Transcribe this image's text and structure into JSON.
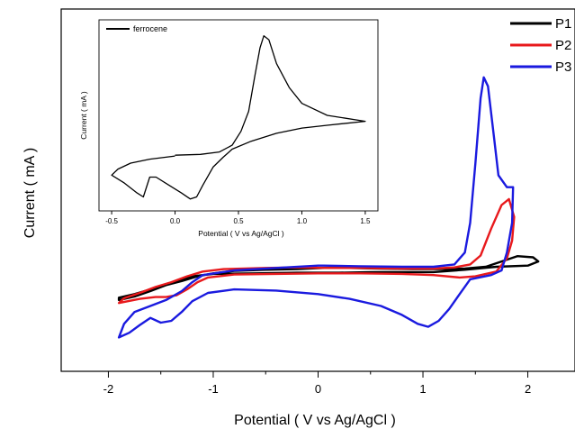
{
  "chart_data": [
    {
      "type": "line",
      "title": "",
      "xlabel": "Potential ( V vs Ag/AgCl )",
      "ylabel": "Current ( mA )",
      "xlim": [
        -2.45,
        2.45
      ],
      "ylim": [
        -1.5,
        4.6
      ],
      "xticks": [
        -2,
        -1,
        0,
        1,
        2
      ],
      "xtick_labels": [
        "-2",
        "-1",
        "0",
        "1",
        "2"
      ],
      "y_tick_labels_shown": false,
      "legend_position": "top-right",
      "series": [
        {
          "name": "P1",
          "color": "#000000",
          "points": [
            [
              0.05,
              0.24
            ],
            [
              0.3,
              0.24
            ],
            [
              0.6,
              0.23
            ],
            [
              0.9,
              0.22
            ],
            [
              1.2,
              0.22
            ],
            [
              1.4,
              0.23
            ],
            [
              1.6,
              0.26
            ],
            [
              1.75,
              0.35
            ],
            [
              1.9,
              0.44
            ],
            [
              2.05,
              0.42
            ],
            [
              2.1,
              0.35
            ],
            [
              2.0,
              0.28
            ],
            [
              1.7,
              0.26
            ],
            [
              1.4,
              0.21
            ],
            [
              1.1,
              0.17
            ],
            [
              0.8,
              0.17
            ],
            [
              0.5,
              0.17
            ],
            [
              0.2,
              0.16
            ],
            [
              -0.2,
              0.16
            ],
            [
              -0.6,
              0.15
            ],
            [
              -1.0,
              0.14
            ],
            [
              -1.2,
              0.1
            ],
            [
              -1.35,
              0.03
            ],
            [
              -1.45,
              -0.05
            ],
            [
              -1.6,
              -0.15
            ],
            [
              -1.75,
              -0.24
            ],
            [
              -1.9,
              -0.3
            ],
            [
              -1.9,
              -0.26
            ],
            [
              -1.75,
              -0.2
            ],
            [
              -1.6,
              -0.12
            ],
            [
              -1.45,
              -0.05
            ],
            [
              -1.3,
              0.02
            ],
            [
              -1.15,
              0.1
            ],
            [
              -1.0,
              0.15
            ],
            [
              -0.8,
              0.19
            ],
            [
              -0.5,
              0.21
            ],
            [
              -0.2,
              0.22
            ],
            [
              0.05,
              0.24
            ]
          ]
        },
        {
          "name": "P2",
          "color": "#e8191c",
          "points": [
            [
              0.05,
              0.24
            ],
            [
              0.4,
              0.24
            ],
            [
              0.8,
              0.23
            ],
            [
              1.1,
              0.23
            ],
            [
              1.3,
              0.25
            ],
            [
              1.45,
              0.3
            ],
            [
              1.55,
              0.45
            ],
            [
              1.65,
              0.9
            ],
            [
              1.75,
              1.3
            ],
            [
              1.82,
              1.4
            ],
            [
              1.87,
              1.1
            ],
            [
              1.85,
              0.7
            ],
            [
              1.8,
              0.4
            ],
            [
              1.7,
              0.18
            ],
            [
              1.5,
              0.1
            ],
            [
              1.35,
              0.08
            ],
            [
              1.1,
              0.12
            ],
            [
              0.8,
              0.14
            ],
            [
              0.4,
              0.15
            ],
            [
              0.0,
              0.15
            ],
            [
              -0.4,
              0.14
            ],
            [
              -0.8,
              0.13
            ],
            [
              -1.05,
              0.08
            ],
            [
              -1.15,
              0.0
            ],
            [
              -1.25,
              -0.12
            ],
            [
              -1.35,
              -0.22
            ],
            [
              -1.45,
              -0.25
            ],
            [
              -1.55,
              -0.25
            ],
            [
              -1.7,
              -0.28
            ],
            [
              -1.9,
              -0.35
            ],
            [
              -1.85,
              -0.27
            ],
            [
              -1.7,
              -0.18
            ],
            [
              -1.55,
              -0.08
            ],
            [
              -1.4,
              0.0
            ],
            [
              -1.25,
              0.1
            ],
            [
              -1.1,
              0.18
            ],
            [
              -0.9,
              0.22
            ],
            [
              -0.5,
              0.24
            ],
            [
              -0.2,
              0.25
            ],
            [
              0.05,
              0.24
            ]
          ]
        },
        {
          "name": "P3",
          "color": "#1a1adf",
          "points": [
            [
              0.05,
              0.28
            ],
            [
              0.4,
              0.27
            ],
            [
              0.8,
              0.26
            ],
            [
              1.1,
              0.26
            ],
            [
              1.3,
              0.3
            ],
            [
              1.4,
              0.5
            ],
            [
              1.45,
              1.0
            ],
            [
              1.5,
              2.0
            ],
            [
              1.55,
              3.1
            ],
            [
              1.58,
              3.45
            ],
            [
              1.62,
              3.3
            ],
            [
              1.68,
              2.4
            ],
            [
              1.72,
              1.8
            ],
            [
              1.8,
              1.6
            ],
            [
              1.86,
              1.6
            ],
            [
              1.85,
              1.0
            ],
            [
              1.8,
              0.5
            ],
            [
              1.75,
              0.2
            ],
            [
              1.65,
              0.12
            ],
            [
              1.45,
              0.05
            ],
            [
              1.35,
              -0.2
            ],
            [
              1.25,
              -0.45
            ],
            [
              1.15,
              -0.65
            ],
            [
              1.05,
              -0.75
            ],
            [
              0.95,
              -0.7
            ],
            [
              0.8,
              -0.55
            ],
            [
              0.6,
              -0.4
            ],
            [
              0.3,
              -0.28
            ],
            [
              0.0,
              -0.2
            ],
            [
              -0.4,
              -0.14
            ],
            [
              -0.8,
              -0.12
            ],
            [
              -1.05,
              -0.18
            ],
            [
              -1.2,
              -0.32
            ],
            [
              -1.3,
              -0.5
            ],
            [
              -1.4,
              -0.65
            ],
            [
              -1.5,
              -0.68
            ],
            [
              -1.6,
              -0.6
            ],
            [
              -1.7,
              -0.72
            ],
            [
              -1.8,
              -0.85
            ],
            [
              -1.9,
              -0.93
            ],
            [
              -1.85,
              -0.7
            ],
            [
              -1.75,
              -0.5
            ],
            [
              -1.6,
              -0.4
            ],
            [
              -1.45,
              -0.3
            ],
            [
              -1.3,
              -0.15
            ],
            [
              -1.2,
              0.0
            ],
            [
              -1.1,
              0.12
            ],
            [
              -0.8,
              0.2
            ],
            [
              -0.4,
              0.24
            ],
            [
              0.0,
              0.28
            ],
            [
              0.05,
              0.28
            ]
          ]
        }
      ]
    },
    {
      "type": "line",
      "title": "",
      "xlabel": "Potential ( V vs Ag/AgCl )",
      "ylabel": "Current ( mA )",
      "xlim": [
        -0.6,
        1.6
      ],
      "ylim": [
        -1.4,
        3.4
      ],
      "xticks": [
        -0.5,
        0.0,
        0.5,
        1.0,
        1.5
      ],
      "xtick_labels": [
        "-0.5",
        "0.0",
        "0.5",
        "1.0",
        "1.5"
      ],
      "y_tick_labels_shown": false,
      "legend_position": "top-left",
      "series": [
        {
          "name": "ferrocene",
          "color": "#000000",
          "points": [
            [
              0.0,
              0.0
            ],
            [
              0.2,
              0.02
            ],
            [
              0.35,
              0.08
            ],
            [
              0.45,
              0.25
            ],
            [
              0.52,
              0.6
            ],
            [
              0.58,
              1.1
            ],
            [
              0.63,
              2.0
            ],
            [
              0.67,
              2.7
            ],
            [
              0.7,
              3.0
            ],
            [
              0.74,
              2.9
            ],
            [
              0.8,
              2.3
            ],
            [
              0.9,
              1.7
            ],
            [
              1.0,
              1.3
            ],
            [
              1.2,
              1.0
            ],
            [
              1.5,
              0.85
            ],
            [
              1.2,
              0.75
            ],
            [
              1.0,
              0.68
            ],
            [
              0.8,
              0.55
            ],
            [
              0.6,
              0.35
            ],
            [
              0.45,
              0.15
            ],
            [
              0.38,
              -0.05
            ],
            [
              0.3,
              -0.3
            ],
            [
              0.22,
              -0.75
            ],
            [
              0.17,
              -1.05
            ],
            [
              0.12,
              -1.1
            ],
            [
              0.05,
              -0.95
            ],
            [
              -0.05,
              -0.75
            ],
            [
              -0.15,
              -0.55
            ],
            [
              -0.2,
              -0.55
            ],
            [
              -0.25,
              -1.05
            ],
            [
              -0.3,
              -0.95
            ],
            [
              -0.4,
              -0.7
            ],
            [
              -0.5,
              -0.5
            ],
            [
              -0.45,
              -0.35
            ],
            [
              -0.35,
              -0.2
            ],
            [
              -0.2,
              -0.1
            ],
            [
              0.0,
              -0.02
            ]
          ]
        }
      ]
    }
  ]
}
